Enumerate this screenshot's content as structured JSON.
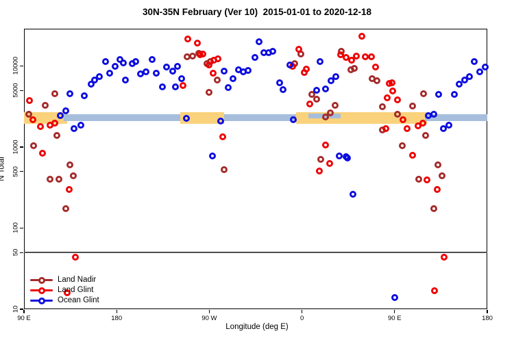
{
  "chart_data": {
    "type": "scatter",
    "title": "30N-35N February (Ver 10)  2015-01-01 to 2020-12-18",
    "xlabel": "Longitude (deg E)",
    "ylabel": "N Total",
    "x_axis": {
      "range": [
        90,
        540
      ],
      "ticks": [
        {
          "value": 90,
          "label": "90 E"
        },
        {
          "value": 180,
          "label": "180"
        },
        {
          "value": 270,
          "label": "90 W"
        },
        {
          "value": 360,
          "label": "0"
        },
        {
          "value": 450,
          "label": "90 E"
        },
        {
          "value": 540,
          "label": "180"
        }
      ]
    },
    "y_axis": {
      "scale": "log",
      "range": [
        10,
        28800
      ],
      "ticks": [
        10,
        50,
        100,
        500,
        1000,
        5000,
        10000
      ]
    },
    "reference_line": {
      "y": 50,
      "color": "#4d4d4d"
    },
    "bands": [
      {
        "color": "#FAD27C",
        "lon": [
          90,
          132
        ],
        "n": [
          1950,
          2720
        ]
      },
      {
        "color": "#FAD27C",
        "lon": [
          241.5,
          284.5
        ],
        "n": [
          1950,
          2720
        ]
      },
      {
        "color": "#FAD27C",
        "lon": [
          354,
          481.5
        ],
        "n": [
          1950,
          2720
        ]
      },
      {
        "color": "#A6BEDC",
        "lon": [
          128.5,
          242
        ],
        "n": [
          2090,
          2560
        ]
      },
      {
        "color": "#A6BEDC",
        "lon": [
          284.5,
          354.5
        ],
        "n": [
          2090,
          2560
        ]
      },
      {
        "color": "#A6BEDC",
        "lon": [
          366,
          397.5
        ],
        "n": [
          2280,
          2580
        ]
      },
      {
        "color": "#A6BEDC",
        "lon": [
          479.5,
          540
        ],
        "n": [
          2090,
          2560
        ]
      }
    ],
    "legend": {
      "position": "bottom-left",
      "items": [
        "Land Nadir",
        "Land Glint",
        "Ocean Glint"
      ]
    },
    "series": [
      {
        "name": "Land Nadir",
        "color": "#A52A2A",
        "points": [
          [
            120,
            4550
          ],
          [
            110.5,
            3270
          ],
          [
            94.5,
            2540
          ],
          [
            122,
            1390
          ],
          [
            99.5,
            1040
          ],
          [
            134.5,
            600
          ],
          [
            138,
            440
          ],
          [
            115.5,
            400
          ],
          [
            124,
            400
          ],
          [
            130.5,
            175
          ],
          [
            248.5,
            13100
          ],
          [
            254,
            13300
          ],
          [
            260,
            14300
          ],
          [
            267.5,
            10700
          ],
          [
            271,
            11300
          ],
          [
            277.5,
            6700
          ],
          [
            269.5,
            4700
          ],
          [
            284.5,
            530
          ],
          [
            353,
            10700
          ],
          [
            359,
            14000
          ],
          [
            369.5,
            4450
          ],
          [
            374,
            3900
          ],
          [
            378.5,
            700
          ],
          [
            383,
            2350
          ],
          [
            387.5,
            2640
          ],
          [
            392,
            3270
          ],
          [
            398,
            15300
          ],
          [
            407.5,
            9000
          ],
          [
            411,
            9300
          ],
          [
            428,
            7000
          ],
          [
            433,
            6600
          ],
          [
            438,
            3160
          ],
          [
            438,
            1620
          ],
          [
            452.5,
            2540
          ],
          [
            457.5,
            1040
          ],
          [
            467.5,
            3200
          ],
          [
            473.5,
            400
          ],
          [
            478,
            4550
          ],
          [
            480,
            1390
          ],
          [
            488,
            175
          ],
          [
            492,
            600
          ],
          [
            496,
            440
          ]
        ]
      },
      {
        "name": "Land Glint",
        "color": "#EE0000",
        "points": [
          [
            95.5,
            3750
          ],
          [
            98.5,
            2170
          ],
          [
            106,
            1790
          ],
          [
            115.5,
            1860
          ],
          [
            120,
            1970
          ],
          [
            108,
            840
          ],
          [
            134,
            300
          ],
          [
            140,
            44
          ],
          [
            132,
            16
          ],
          [
            249,
            21500
          ],
          [
            258.5,
            19200
          ],
          [
            261,
            13800
          ],
          [
            264,
            14000
          ],
          [
            269.5,
            10300
          ],
          [
            274.5,
            11900
          ],
          [
            278.5,
            12300
          ],
          [
            273.5,
            8100
          ],
          [
            244.5,
            5700
          ],
          [
            283,
            1340
          ],
          [
            351,
            9900
          ],
          [
            357,
            16100
          ],
          [
            362.5,
            8300
          ],
          [
            364.5,
            9200
          ],
          [
            367.5,
            3400
          ],
          [
            377,
            510
          ],
          [
            383,
            1060
          ],
          [
            387,
            630
          ],
          [
            397.5,
            13800
          ],
          [
            403,
            12700
          ],
          [
            408,
            11900
          ],
          [
            413,
            13300
          ],
          [
            418,
            23300
          ],
          [
            421.5,
            13100
          ],
          [
            427.5,
            13100
          ],
          [
            431.5,
            9800
          ],
          [
            443,
            4050
          ],
          [
            445,
            6100
          ],
          [
            447.5,
            6200
          ],
          [
            448,
            4900
          ],
          [
            452.5,
            3820
          ],
          [
            458,
            2170
          ],
          [
            441.5,
            1690
          ],
          [
            462,
            1700
          ],
          [
            467.5,
            790
          ],
          [
            472.5,
            1810
          ],
          [
            477.5,
            1970
          ],
          [
            481.5,
            390
          ],
          [
            488.5,
            17
          ],
          [
            491.5,
            300
          ],
          [
            498,
            44
          ]
        ]
      },
      {
        "name": "Ocean Glint",
        "color": "#0D0DE0",
        "points": [
          [
            125.5,
            2440
          ],
          [
            130.5,
            2800
          ],
          [
            134.5,
            4550
          ],
          [
            138.5,
            1690
          ],
          [
            145,
            1860
          ],
          [
            148.5,
            4300
          ],
          [
            155,
            6000
          ],
          [
            158.5,
            6700
          ],
          [
            163,
            7400
          ],
          [
            169,
            11300
          ],
          [
            173,
            8100
          ],
          [
            178.5,
            9900
          ],
          [
            183,
            12000
          ],
          [
            186.5,
            10900
          ],
          [
            188.5,
            6700
          ],
          [
            195,
            10700
          ],
          [
            198.5,
            11300
          ],
          [
            203,
            8000
          ],
          [
            208.5,
            8500
          ],
          [
            214.5,
            12000
          ],
          [
            218.5,
            8100
          ],
          [
            224.5,
            5500
          ],
          [
            228.5,
            9700
          ],
          [
            234.5,
            8600
          ],
          [
            239,
            9900
          ],
          [
            243,
            7000
          ],
          [
            237.3,
            5500
          ],
          [
            247.8,
            2260
          ],
          [
            281,
            2090
          ],
          [
            273,
            780
          ],
          [
            284.5,
            8600
          ],
          [
            288.5,
            5400
          ],
          [
            293,
            7000
          ],
          [
            298.5,
            9000
          ],
          [
            303,
            8500
          ],
          [
            307.5,
            8800
          ],
          [
            314.5,
            12700
          ],
          [
            318.5,
            20000
          ],
          [
            323,
            14600
          ],
          [
            327.5,
            14600
          ],
          [
            331.5,
            15300
          ],
          [
            338.5,
            6200
          ],
          [
            341.5,
            5100
          ],
          [
            348.5,
            10300
          ],
          [
            351.5,
            2170
          ],
          [
            374,
            5000
          ],
          [
            377.5,
            11300
          ],
          [
            383,
            5200
          ],
          [
            388,
            6600
          ],
          [
            393,
            7400
          ],
          [
            396,
            780
          ],
          [
            403,
            760
          ],
          [
            404,
            730
          ],
          [
            409.5,
            260
          ],
          [
            450,
            14
          ],
          [
            482.5,
            2440
          ],
          [
            488,
            2540
          ],
          [
            492.5,
            4500
          ],
          [
            497.5,
            1700
          ],
          [
            502.5,
            1860
          ],
          [
            508,
            4500
          ],
          [
            512.5,
            6000
          ],
          [
            518,
            6700
          ],
          [
            522.5,
            7400
          ],
          [
            527.5,
            11300
          ],
          [
            532.5,
            8500
          ],
          [
            538,
            9800
          ]
        ]
      }
    ]
  }
}
